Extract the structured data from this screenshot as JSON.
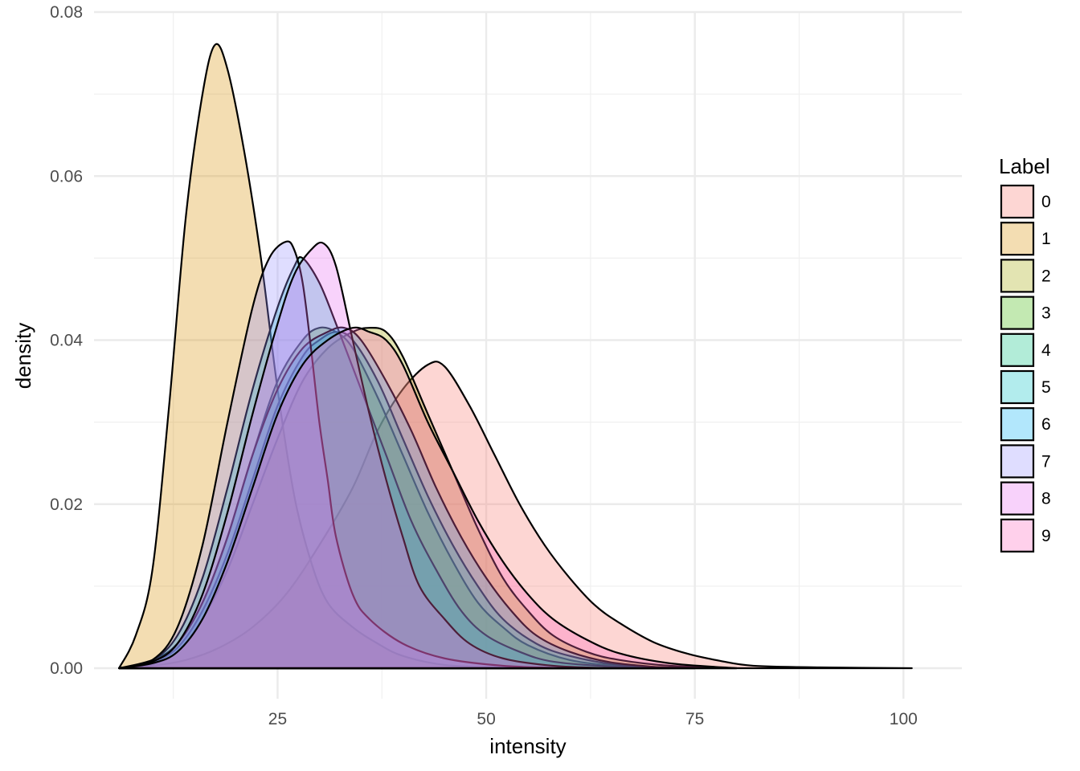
{
  "chart_data": {
    "type": "area",
    "subtype": "density",
    "xlabel": "intensity",
    "ylabel": "density",
    "xlim": [
      3,
      107
    ],
    "ylim": [
      0,
      0.08
    ],
    "x_ticks": [
      25,
      50,
      75,
      100
    ],
    "x_tick_labels": [
      "25",
      "50",
      "75",
      "100"
    ],
    "y_ticks": [
      0,
      0.02,
      0.04,
      0.06,
      0.08
    ],
    "y_tick_labels": [
      "0.00",
      "0.02",
      "0.04",
      "0.06",
      "0.08"
    ],
    "grid": true,
    "legend": {
      "title": "Label",
      "position": "right"
    },
    "series": [
      {
        "name": "0",
        "color": "#F8766D",
        "points": [
          [
            6,
            0
          ],
          [
            10,
            0.0003
          ],
          [
            14,
            0.001
          ],
          [
            18,
            0.0025
          ],
          [
            22,
            0.005
          ],
          [
            26,
            0.009
          ],
          [
            30,
            0.015
          ],
          [
            34,
            0.022
          ],
          [
            37,
            0.029
          ],
          [
            40,
            0.034
          ],
          [
            43,
            0.037
          ],
          [
            45,
            0.0368
          ],
          [
            48,
            0.032
          ],
          [
            51,
            0.026
          ],
          [
            54,
            0.02
          ],
          [
            57,
            0.015
          ],
          [
            60,
            0.011
          ],
          [
            63,
            0.0077
          ],
          [
            66,
            0.0055
          ],
          [
            70,
            0.0032
          ],
          [
            74,
            0.0018
          ],
          [
            78,
            0.0009
          ],
          [
            82,
            0.0003
          ],
          [
            90,
            0.0001
          ],
          [
            101,
            0
          ]
        ]
      },
      {
        "name": "1",
        "color": "#D89000",
        "points": [
          [
            6,
            0
          ],
          [
            8,
            0.004
          ],
          [
            10,
            0.012
          ],
          [
            12,
            0.032
          ],
          [
            14,
            0.055
          ],
          [
            16,
            0.07
          ],
          [
            17.5,
            0.076
          ],
          [
            19,
            0.073
          ],
          [
            21,
            0.063
          ],
          [
            23,
            0.05
          ],
          [
            25,
            0.034
          ],
          [
            27,
            0.021
          ],
          [
            29,
            0.013
          ],
          [
            31,
            0.008
          ],
          [
            34,
            0.005
          ],
          [
            37,
            0.003
          ],
          [
            40,
            0.0015
          ],
          [
            45,
            0.0004
          ],
          [
            52,
            0.0001
          ],
          [
            60,
            0
          ]
        ]
      },
      {
        "name": "2",
        "color": "#A3A500",
        "points": [
          [
            6,
            0
          ],
          [
            10,
            0.0005
          ],
          [
            13,
            0.002
          ],
          [
            16,
            0.006
          ],
          [
            19,
            0.012
          ],
          [
            22,
            0.02
          ],
          [
            25,
            0.028
          ],
          [
            28,
            0.035
          ],
          [
            31,
            0.039
          ],
          [
            34,
            0.041
          ],
          [
            36,
            0.0415
          ],
          [
            38,
            0.041
          ],
          [
            40,
            0.038
          ],
          [
            43,
            0.031
          ],
          [
            46,
            0.024
          ],
          [
            49,
            0.017
          ],
          [
            52,
            0.011
          ],
          [
            55,
            0.007
          ],
          [
            58,
            0.004
          ],
          [
            62,
            0.002
          ],
          [
            66,
            0.001
          ],
          [
            72,
            0.0003
          ],
          [
            80,
            0
          ]
        ]
      },
      {
        "name": "3",
        "color": "#39B600",
        "points": [
          [
            6,
            0
          ],
          [
            10,
            0.001
          ],
          [
            13,
            0.003
          ],
          [
            16,
            0.008
          ],
          [
            19,
            0.016
          ],
          [
            22,
            0.026
          ],
          [
            25,
            0.035
          ],
          [
            28,
            0.04
          ],
          [
            30,
            0.0415
          ],
          [
            32,
            0.041
          ],
          [
            34,
            0.039
          ],
          [
            37,
            0.033
          ],
          [
            40,
            0.026
          ],
          [
            43,
            0.019
          ],
          [
            46,
            0.013
          ],
          [
            49,
            0.008
          ],
          [
            52,
            0.005
          ],
          [
            55,
            0.0028
          ],
          [
            60,
            0.001
          ],
          [
            66,
            0.0003
          ],
          [
            75,
            0
          ]
        ]
      },
      {
        "name": "4",
        "color": "#00BF7D",
        "points": [
          [
            6,
            0
          ],
          [
            10,
            0.0008
          ],
          [
            13,
            0.0025
          ],
          [
            16,
            0.007
          ],
          [
            19,
            0.014
          ],
          [
            22,
            0.023
          ],
          [
            25,
            0.032
          ],
          [
            28,
            0.038
          ],
          [
            30,
            0.04
          ],
          [
            32,
            0.041
          ],
          [
            34,
            0.04
          ],
          [
            37,
            0.035
          ],
          [
            40,
            0.028
          ],
          [
            43,
            0.021
          ],
          [
            46,
            0.015
          ],
          [
            49,
            0.01
          ],
          [
            52,
            0.006
          ],
          [
            56,
            0.003
          ],
          [
            60,
            0.0015
          ],
          [
            66,
            0.0004
          ],
          [
            75,
            0
          ]
        ]
      },
      {
        "name": "5",
        "color": "#00BFC4",
        "points": [
          [
            6,
            0
          ],
          [
            10,
            0.001
          ],
          [
            13,
            0.004
          ],
          [
            16,
            0.011
          ],
          [
            19,
            0.022
          ],
          [
            22,
            0.034
          ],
          [
            25,
            0.044
          ],
          [
            27,
            0.049
          ],
          [
            28,
            0.05
          ],
          [
            30,
            0.047
          ],
          [
            32,
            0.042
          ],
          [
            35,
            0.034
          ],
          [
            38,
            0.026
          ],
          [
            41,
            0.018
          ],
          [
            44,
            0.012
          ],
          [
            47,
            0.007
          ],
          [
            50,
            0.004
          ],
          [
            54,
            0.002
          ],
          [
            58,
            0.0008
          ],
          [
            65,
            0.0002
          ],
          [
            72,
            0
          ]
        ]
      },
      {
        "name": "6",
        "color": "#00B0F6",
        "points": [
          [
            6,
            0
          ],
          [
            10,
            0.0008
          ],
          [
            13,
            0.003
          ],
          [
            16,
            0.008
          ],
          [
            19,
            0.016
          ],
          [
            22,
            0.026
          ],
          [
            25,
            0.034
          ],
          [
            28,
            0.039
          ],
          [
            31,
            0.041
          ],
          [
            33,
            0.0415
          ],
          [
            35,
            0.04
          ],
          [
            38,
            0.035
          ],
          [
            41,
            0.029
          ],
          [
            44,
            0.022
          ],
          [
            47,
            0.016
          ],
          [
            50,
            0.011
          ],
          [
            53,
            0.007
          ],
          [
            56,
            0.004
          ],
          [
            60,
            0.002
          ],
          [
            65,
            0.0007
          ],
          [
            72,
            0
          ]
        ]
      },
      {
        "name": "7",
        "color": "#9590FF",
        "points": [
          [
            6,
            0
          ],
          [
            10,
            0.001
          ],
          [
            13,
            0.005
          ],
          [
            16,
            0.015
          ],
          [
            19,
            0.03
          ],
          [
            22,
            0.044
          ],
          [
            24,
            0.05
          ],
          [
            26,
            0.052
          ],
          [
            27,
            0.051
          ],
          [
            28,
            0.047
          ],
          [
            29,
            0.039
          ],
          [
            30,
            0.03
          ],
          [
            31,
            0.023
          ],
          [
            32,
            0.016
          ],
          [
            34,
            0.009
          ],
          [
            36,
            0.006
          ],
          [
            40,
            0.003
          ],
          [
            45,
            0.0012
          ],
          [
            52,
            0.0003
          ],
          [
            60,
            0
          ]
        ]
      },
      {
        "name": "8",
        "color": "#E76BF3",
        "points": [
          [
            6,
            0
          ],
          [
            10,
            0.0008
          ],
          [
            13,
            0.003
          ],
          [
            16,
            0.009
          ],
          [
            19,
            0.019
          ],
          [
            22,
            0.031
          ],
          [
            25,
            0.042
          ],
          [
            27,
            0.048
          ],
          [
            29,
            0.051
          ],
          [
            30.5,
            0.0518
          ],
          [
            32,
            0.049
          ],
          [
            34,
            0.04
          ],
          [
            36,
            0.031
          ],
          [
            38,
            0.023
          ],
          [
            40,
            0.016
          ],
          [
            42,
            0.01
          ],
          [
            45,
            0.006
          ],
          [
            48,
            0.003
          ],
          [
            52,
            0.0012
          ],
          [
            58,
            0.0003
          ],
          [
            65,
            0
          ]
        ]
      },
      {
        "name": "9",
        "color": "#FF62BC",
        "points": [
          [
            6,
            0
          ],
          [
            10,
            0.0006
          ],
          [
            13,
            0.002
          ],
          [
            16,
            0.006
          ],
          [
            19,
            0.013
          ],
          [
            22,
            0.022
          ],
          [
            25,
            0.031
          ],
          [
            28,
            0.037
          ],
          [
            31,
            0.04
          ],
          [
            34,
            0.0415
          ],
          [
            36,
            0.041
          ],
          [
            38,
            0.04
          ],
          [
            40,
            0.037
          ],
          [
            43,
            0.03
          ],
          [
            46,
            0.024
          ],
          [
            49,
            0.018
          ],
          [
            52,
            0.013
          ],
          [
            55,
            0.009
          ],
          [
            58,
            0.006
          ],
          [
            62,
            0.0035
          ],
          [
            66,
            0.0018
          ],
          [
            72,
            0.0006
          ],
          [
            80,
            0
          ]
        ]
      }
    ]
  }
}
